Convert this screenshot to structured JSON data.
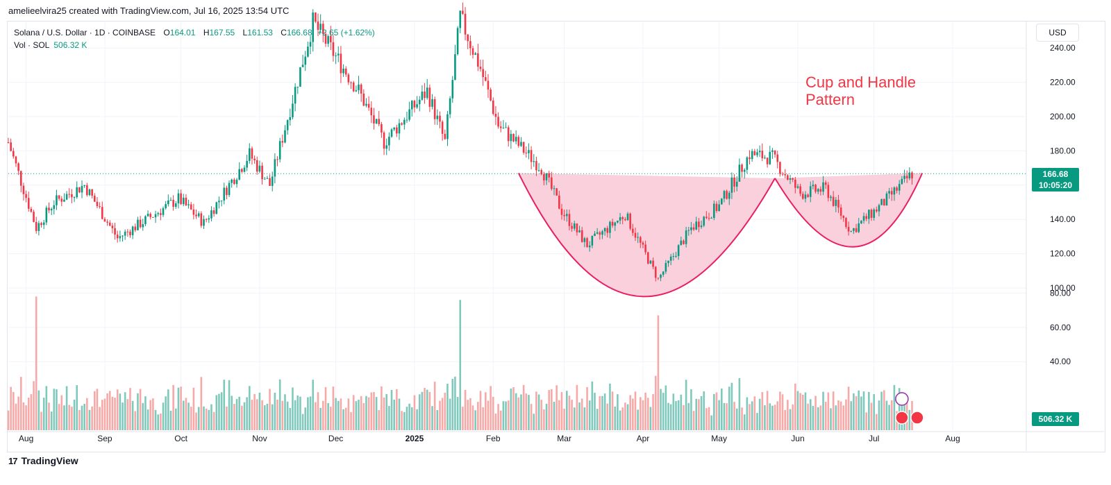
{
  "header": {
    "credit": "amelieelvira25 created with TradingView.com, Jul 16, 2025 13:54 UTC"
  },
  "legend": {
    "title": "Solana / U.S. Dollar · 1D · COINBASE",
    "open_label": "O",
    "open": "164.01",
    "high_label": "H",
    "high": "167.55",
    "low_label": "L",
    "low": "161.53",
    "close_label": "C",
    "close": "166.68",
    "change": "+2.65 (+1.62%)",
    "volume_label": "Vol · SOL",
    "volume": "506.32 K"
  },
  "currency": "USD",
  "price_tag": {
    "price": "166.68",
    "countdown": "10:05:20"
  },
  "volume_tag": "506.32 K",
  "annotation": {
    "line1": "Cup and Handle",
    "line2": "Pattern"
  },
  "footer": {
    "logo_text": "TradingView",
    "logo_mark": "17"
  },
  "colors": {
    "up": "#089981",
    "down": "#f23645",
    "up_vol": "#7fc9bc",
    "down_vol": "#f7a9a7",
    "pattern_fill": "#f9c8d7",
    "pattern_stroke": "#e91e63",
    "accent": "#2962ff"
  },
  "chart_data": {
    "type": "candlestick",
    "symbol": "SOLUSD",
    "interval": "1D",
    "price_axis_ticks": [
      "240.00",
      "220.00",
      "200.00",
      "180.00",
      "160.00",
      "140.00",
      "120.00",
      "100.00",
      "80.00",
      "60.00",
      "40.00"
    ],
    "price_range": [
      90,
      245
    ],
    "volume_axis_ticks": [
      "80.00",
      "60.00",
      "40.00"
    ],
    "volume_range": [
      0,
      85
    ],
    "time_ticks": [
      {
        "label": "Aug",
        "date": "2024-08-01",
        "bold": false
      },
      {
        "label": "Sep",
        "date": "2024-09-01",
        "bold": false
      },
      {
        "label": "Oct",
        "date": "2024-10-01",
        "bold": false
      },
      {
        "label": "Nov",
        "date": "2024-11-01",
        "bold": false
      },
      {
        "label": "Dec",
        "date": "2024-12-01",
        "bold": false
      },
      {
        "label": "2025",
        "date": "2025-01-01",
        "bold": true
      },
      {
        "label": "Feb",
        "date": "2025-02-01",
        "bold": false
      },
      {
        "label": "Mar",
        "date": "2025-03-01",
        "bold": false
      },
      {
        "label": "Apr",
        "date": "2025-04-01",
        "bold": false
      },
      {
        "label": "May",
        "date": "2025-05-01",
        "bold": false
      },
      {
        "label": "Jun",
        "date": "2025-06-01",
        "bold": false
      },
      {
        "label": "Jul",
        "date": "2025-07-01",
        "bold": false
      },
      {
        "label": "Aug",
        "date": "2025-08-01",
        "bold": false
      }
    ],
    "date_range": [
      "2024-07-25",
      "2025-08-30"
    ],
    "last_price": 166.68,
    "grid": true,
    "approx_close_path": [
      {
        "date": "2024-07-25",
        "close": 185
      },
      {
        "date": "2024-08-05",
        "close": 135
      },
      {
        "date": "2024-08-12",
        "close": 150
      },
      {
        "date": "2024-08-24",
        "close": 160
      },
      {
        "date": "2024-09-06",
        "close": 129
      },
      {
        "date": "2024-09-30",
        "close": 152
      },
      {
        "date": "2024-10-10",
        "close": 138
      },
      {
        "date": "2024-10-28",
        "close": 178
      },
      {
        "date": "2024-11-05",
        "close": 160
      },
      {
        "date": "2024-11-22",
        "close": 255
      },
      {
        "date": "2024-12-10",
        "close": 215
      },
      {
        "date": "2024-12-20",
        "close": 185
      },
      {
        "date": "2025-01-06",
        "close": 215
      },
      {
        "date": "2025-01-13",
        "close": 185
      },
      {
        "date": "2025-01-19",
        "close": 258
      },
      {
        "date": "2025-01-27",
        "close": 228
      },
      {
        "date": "2025-02-03",
        "close": 195
      },
      {
        "date": "2025-02-20",
        "close": 170
      },
      {
        "date": "2025-02-28",
        "close": 145
      },
      {
        "date": "2025-03-10",
        "close": 125
      },
      {
        "date": "2025-03-25",
        "close": 143
      },
      {
        "date": "2025-04-07",
        "close": 105
      },
      {
        "date": "2025-04-20",
        "close": 135
      },
      {
        "date": "2025-05-01",
        "close": 148
      },
      {
        "date": "2025-05-13",
        "close": 178
      },
      {
        "date": "2025-05-22",
        "close": 176
      },
      {
        "date": "2025-06-02",
        "close": 155
      },
      {
        "date": "2025-06-12",
        "close": 158
      },
      {
        "date": "2025-06-22",
        "close": 133
      },
      {
        "date": "2025-07-05",
        "close": 150
      },
      {
        "date": "2025-07-16",
        "close": 166.68
      }
    ],
    "volume_spikes": [
      {
        "date": "2024-08-05",
        "volume": 78
      },
      {
        "date": "2025-01-19",
        "volume": 76
      },
      {
        "date": "2025-04-07",
        "volume": 67
      }
    ],
    "pattern": {
      "cup": {
        "start": {
          "date": "2025-02-11",
          "price": 167
        },
        "bottom": {
          "date": "2025-04-01",
          "price": 95
        },
        "end": {
          "date": "2025-05-23",
          "price": 164
        }
      },
      "handle": {
        "start": {
          "date": "2025-05-23",
          "price": 164
        },
        "bottom": {
          "date": "2025-06-23",
          "price": 124
        },
        "end": {
          "date": "2025-07-20",
          "price": 167
        }
      }
    }
  }
}
